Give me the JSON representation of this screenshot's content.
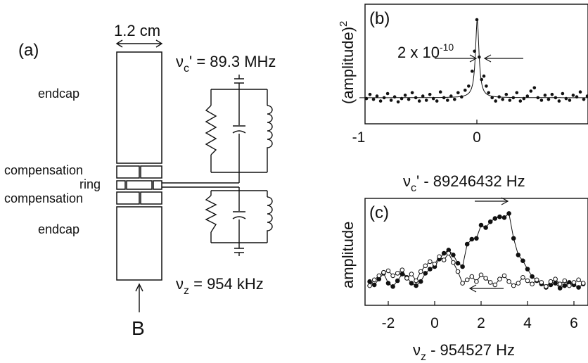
{
  "panel_a": {
    "label": "(a)",
    "width_label": "1.2 cm",
    "freq_top": {
      "symbol": "ν",
      "sub": "c",
      "rest": "' = 89.3 MHz"
    },
    "freq_bottom": {
      "symbol": "ν",
      "sub": "z",
      "rest": " = 954 kHz"
    },
    "electrodes": [
      "endcap",
      "compensation",
      "ring",
      "compensation",
      "endcap"
    ],
    "field_label": "B"
  },
  "panel_b": {
    "label": "(b)",
    "ylabel": "(amplitude)",
    "ylabel_sup": "2",
    "width_annotation": {
      "base": "2 x 10",
      "exp": "-10"
    },
    "xlabel": {
      "symbol": "ν",
      "sub": "c",
      "rest": "' - 89246432 Hz"
    },
    "xticks": [
      "-1",
      "0",
      "1"
    ]
  },
  "panel_c": {
    "label": "(c)",
    "ylabel": "amplitude",
    "xlabel": {
      "symbol": "ν",
      "sub": "z",
      "rest": " - 954527 Hz"
    },
    "xticks": [
      "-2",
      "0",
      "2",
      "4",
      "6"
    ]
  },
  "chart_data": [
    {
      "type": "scatter",
      "id": "b",
      "xlim": [
        -1,
        1
      ],
      "series": [
        {
          "x": [
            -0.94,
            -0.91,
            -0.88,
            -0.85,
            -0.82,
            -0.79,
            -0.76,
            -0.73,
            -0.7,
            -0.67,
            -0.64,
            -0.61,
            -0.58,
            -0.55,
            -0.52,
            -0.49,
            -0.46,
            -0.43,
            -0.4,
            -0.37,
            -0.34,
            -0.31,
            -0.28,
            -0.25,
            -0.22,
            -0.19,
            -0.16,
            -0.13,
            -0.1,
            -0.07,
            -0.04,
            -0.02,
            0.0,
            0.02,
            0.04,
            0.06,
            0.08,
            0.1,
            0.13,
            0.16,
            0.19,
            0.22,
            0.25,
            0.28,
            0.31,
            0.34,
            0.37,
            0.4,
            0.43,
            0.46,
            0.49,
            0.52,
            0.55,
            0.58,
            0.61,
            0.64,
            0.67,
            0.7,
            0.73,
            0.76,
            0.79,
            0.82,
            0.85,
            0.88,
            0.91,
            0.94
          ],
          "y": [
            0.05,
            0.1,
            0.04,
            0.08,
            0.02,
            0.06,
            0.11,
            0.03,
            0.07,
            0.01,
            0.05,
            0.09,
            0.04,
            0.12,
            0.06,
            0.02,
            0.08,
            0.03,
            0.1,
            0.05,
            0.02,
            0.13,
            0.06,
            0.03,
            0.08,
            0.04,
            0.12,
            0.07,
            0.15,
            0.2,
            0.38,
            0.62,
            1.0,
            0.55,
            0.28,
            0.32,
            0.2,
            0.12,
            0.06,
            0.02,
            0.07,
            0.04,
            0.1,
            0.03,
            0.06,
            0.12,
            0.02,
            0.05,
            0.08,
            0.14,
            0.18,
            0.06,
            0.03,
            0.09,
            0.04,
            0.1,
            0.06,
            0.02,
            0.11,
            0.05,
            0.03,
            0.09,
            0.07,
            0.13,
            0.04,
            0.08
          ]
        }
      ]
    },
    {
      "type": "line",
      "id": "c",
      "xlim": [
        -3,
        6.6
      ],
      "series": [
        {
          "marker": "filled",
          "x": [
            -2.8,
            -2.6,
            -2.4,
            -2.2,
            -2.0,
            -1.8,
            -1.6,
            -1.4,
            -1.2,
            -1.0,
            -0.8,
            -0.6,
            -0.4,
            -0.2,
            0.0,
            0.2,
            0.4,
            0.6,
            0.8,
            1.0,
            1.2,
            1.4,
            1.6,
            1.8,
            2.0,
            2.2,
            2.4,
            2.6,
            2.8,
            3.0,
            3.2,
            3.4,
            3.6,
            3.8,
            4.0,
            4.2,
            4.4,
            4.6,
            4.8,
            5.0,
            5.2,
            5.4,
            5.6,
            5.8,
            6.0,
            6.2,
            6.4
          ],
          "y": [
            0.1,
            0.06,
            0.13,
            0.2,
            0.08,
            0.04,
            0.11,
            0.19,
            0.15,
            0.08,
            0.05,
            0.1,
            0.2,
            0.25,
            0.28,
            0.37,
            0.44,
            0.48,
            0.42,
            0.32,
            0.28,
            0.55,
            0.61,
            0.62,
            0.78,
            0.75,
            0.82,
            0.86,
            0.88,
            0.87,
            0.92,
            0.62,
            0.42,
            0.35,
            0.25,
            0.16,
            0.11,
            0.07,
            0.03,
            0.06,
            0.08,
            0.02,
            0.05,
            0.09,
            0.06,
            0.03,
            0.07
          ]
        },
        {
          "marker": "open",
          "x": [
            -2.8,
            -2.6,
            -2.4,
            -2.2,
            -2.0,
            -1.8,
            -1.6,
            -1.4,
            -1.2,
            -1.0,
            -0.8,
            -0.6,
            -0.4,
            -0.2,
            0.0,
            0.2,
            0.4,
            0.6,
            0.8,
            1.0,
            1.2,
            1.4,
            1.6,
            1.8,
            2.0,
            2.2,
            2.4,
            2.6,
            2.8,
            3.0,
            3.2,
            3.4,
            3.6,
            3.8,
            4.0,
            4.2,
            4.4,
            4.6,
            4.8,
            5.0,
            5.2,
            5.4,
            5.6,
            5.8,
            6.0,
            6.2,
            6.4
          ],
          "y": [
            0.05,
            0.12,
            0.17,
            0.21,
            0.23,
            0.17,
            0.2,
            0.24,
            0.14,
            0.19,
            0.11,
            0.22,
            0.29,
            0.34,
            0.31,
            0.4,
            0.36,
            0.44,
            0.33,
            0.22,
            0.08,
            0.12,
            0.16,
            0.1,
            0.18,
            0.14,
            0.09,
            0.06,
            0.13,
            0.17,
            0.1,
            0.05,
            0.08,
            0.15,
            0.11,
            0.07,
            0.12,
            0.09,
            0.04,
            0.1,
            0.13,
            0.07,
            0.11,
            0.05,
            0.09,
            0.12,
            0.08
          ]
        }
      ]
    }
  ]
}
